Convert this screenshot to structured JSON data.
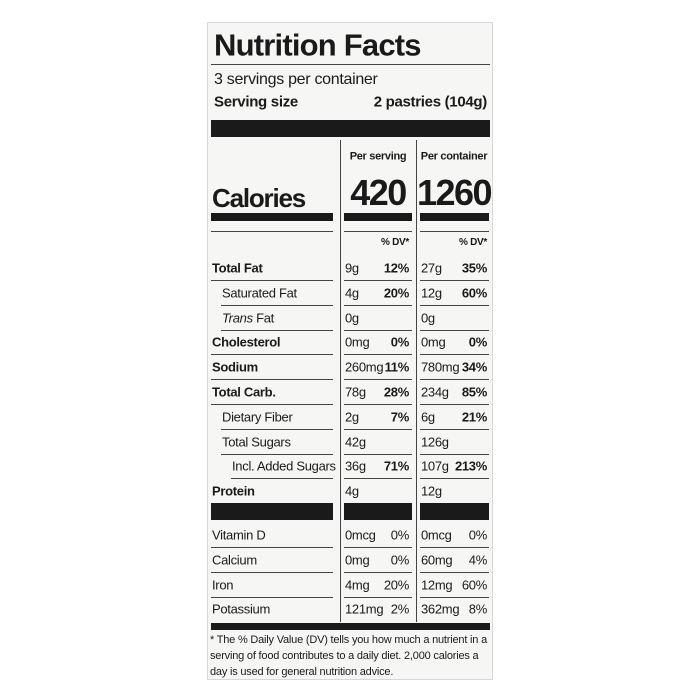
{
  "header": {
    "title": "Nutrition Facts",
    "servings": "3 servings per container",
    "serving_size_label": "Serving size",
    "serving_size": "2 pastries (104g)"
  },
  "columns": [
    "Per serving",
    "Per container"
  ],
  "calories": {
    "label": "Calories",
    "values": [
      "420",
      "1260"
    ]
  },
  "dv_header": [
    "% DV*",
    "% DV*"
  ],
  "nutrients": [
    {
      "name": "Total Fat",
      "bold": true,
      "indent": 0,
      "values": [
        [
          "9g",
          "12%"
        ],
        [
          "27g",
          "35%"
        ]
      ]
    },
    {
      "name": "Saturated Fat",
      "bold": false,
      "indent": 1,
      "values": [
        [
          "4g",
          "20%"
        ],
        [
          "12g",
          "60%"
        ]
      ]
    },
    {
      "italic": "Trans",
      "name": " Fat",
      "bold": false,
      "indent": 1,
      "values": [
        [
          "0g"
        ],
        [
          "0g"
        ]
      ]
    },
    {
      "name": "Cholesterol",
      "bold": true,
      "indent": 0,
      "values": [
        [
          "0mg",
          "0%"
        ],
        [
          "0mg",
          "0%"
        ]
      ]
    },
    {
      "name": "Sodium",
      "bold": true,
      "indent": 0,
      "values": [
        [
          "260mg",
          "11%"
        ],
        [
          "780mg",
          "34%"
        ]
      ]
    },
    {
      "name": "Total Carb.",
      "bold": true,
      "indent": 0,
      "values": [
        [
          "78g",
          "28%"
        ],
        [
          "234g",
          "85%"
        ]
      ]
    },
    {
      "name": "Dietary Fiber",
      "bold": false,
      "indent": 1,
      "values": [
        [
          "2g",
          "7%"
        ],
        [
          "6g",
          "21%"
        ]
      ]
    },
    {
      "name": "Total Sugars",
      "bold": false,
      "indent": 1,
      "values": [
        [
          "42g"
        ],
        [
          "126g"
        ]
      ]
    },
    {
      "name": "Incl. Added Sugars",
      "bold": false,
      "indent": 2,
      "values": [
        [
          "36g",
          "71%"
        ],
        [
          "107g",
          "213%"
        ]
      ]
    },
    {
      "name": "Protein",
      "bold": true,
      "indent": 0,
      "values": [
        [
          "4g"
        ],
        [
          "12g"
        ]
      ]
    }
  ],
  "vitamins": [
    {
      "name": "Vitamin D",
      "values": [
        [
          "0mcg",
          "0%"
        ],
        [
          "0mcg",
          "0%"
        ]
      ]
    },
    {
      "name": "Calcium",
      "values": [
        [
          "0mg",
          "0%"
        ],
        [
          "60mg",
          "4%"
        ]
      ]
    },
    {
      "name": "Iron",
      "values": [
        [
          "4mg",
          "20%"
        ],
        [
          "12mg",
          "60%"
        ]
      ]
    },
    {
      "name": "Potassium",
      "values": [
        [
          "121mg",
          "2%"
        ],
        [
          "362mg",
          "8%"
        ]
      ]
    }
  ],
  "footnote": "* The % Daily Value (DV) tells you how much a nutrient in a serving of food contributes to a daily diet. 2,000 calories a day is used for general nutrition advice."
}
